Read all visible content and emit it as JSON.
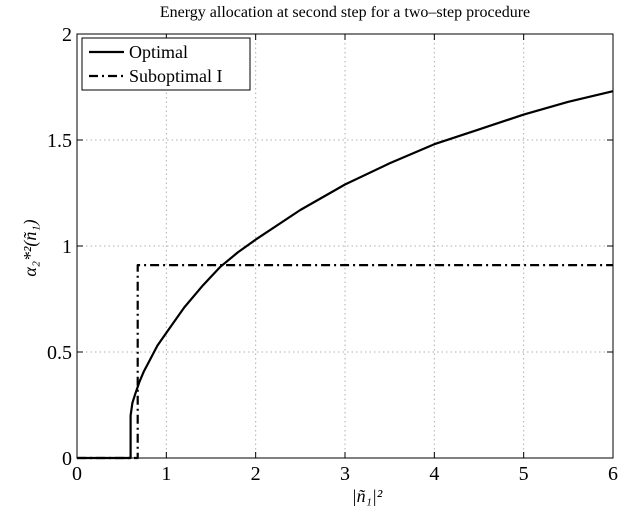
{
  "chart_data": {
    "type": "line",
    "title": "Energy allocation at second step for a two–step procedure",
    "xlabel": "|ñ₁|²",
    "ylabel": "α₂*²(ñ₁)",
    "xlim": [
      0,
      6
    ],
    "ylim": [
      0,
      2
    ],
    "x_ticks": [
      "0",
      "1",
      "2",
      "3",
      "4",
      "5",
      "6"
    ],
    "y_ticks": [
      "0",
      "0.5",
      "1",
      "1.5",
      "2"
    ],
    "grid": true,
    "legend_position": "top-left",
    "series": [
      {
        "name": "Optimal",
        "style": "solid",
        "color": "#000000",
        "x": [
          0,
          0.6,
          0.6,
          0.62,
          0.65,
          0.7,
          0.75,
          0.8,
          0.9,
          1.0,
          1.2,
          1.4,
          1.6,
          1.8,
          2.0,
          2.5,
          3.0,
          3.5,
          4.0,
          4.5,
          5.0,
          5.5,
          6.0
        ],
        "values": [
          0,
          0,
          0.2,
          0.26,
          0.3,
          0.36,
          0.41,
          0.45,
          0.53,
          0.59,
          0.71,
          0.81,
          0.9,
          0.97,
          1.03,
          1.17,
          1.29,
          1.39,
          1.48,
          1.55,
          1.62,
          1.68,
          1.73
        ]
      },
      {
        "name": "Suboptimal I",
        "style": "dashdot",
        "color": "#000000",
        "x": [
          0,
          0.68,
          0.68,
          6.0
        ],
        "values": [
          0,
          0,
          0.91,
          0.91
        ]
      }
    ]
  }
}
